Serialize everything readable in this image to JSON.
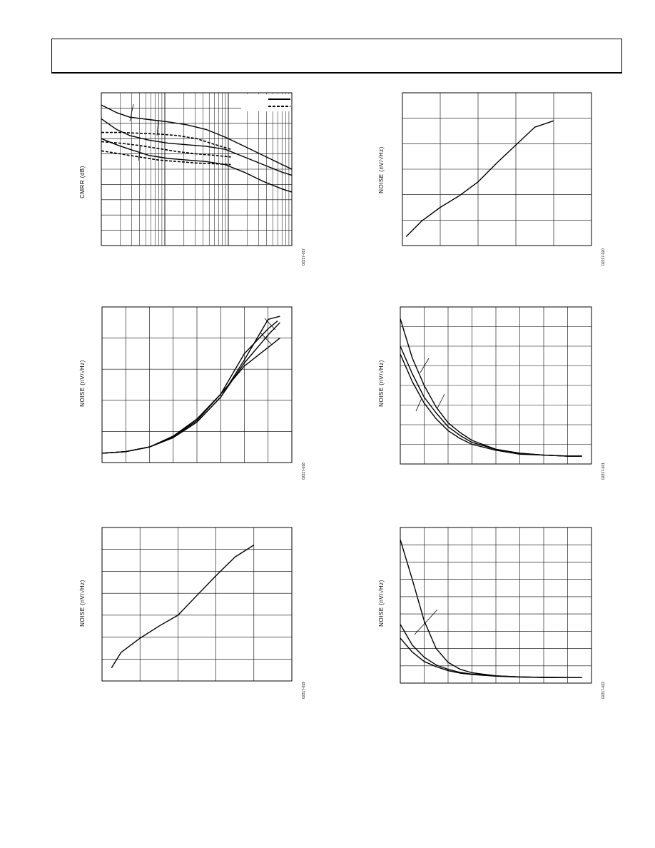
{
  "header": {},
  "figures": [
    {
      "id": "f017",
      "ylabel": "CMRR (dB)",
      "fig_number": "02217-017",
      "legend_styles": [
        "solid",
        "dashed"
      ],
      "log_x": true
    },
    {
      "id": "f020",
      "ylabel": "NOISE (nV/√Hz)",
      "fig_number": "02217-020"
    },
    {
      "id": "f018",
      "ylabel": "NOISE (nV/√Hz)",
      "fig_number": "02217-018"
    },
    {
      "id": "f021",
      "ylabel": "NOISE (nV/√Hz)",
      "fig_number": "02217-021"
    },
    {
      "id": "f019",
      "ylabel": "NOISE (nV/√Hz)",
      "fig_number": "02217-019"
    },
    {
      "id": "f022",
      "ylabel": "NOISE (nV/√Hz)",
      "fig_number": "02217-022"
    }
  ],
  "chart_data": [
    {
      "id": "f017",
      "type": "line",
      "x_scale": "log",
      "xlim": [
        0,
        1
      ],
      "ylim": [
        0,
        10
      ],
      "series": [
        {
          "style": "solid",
          "x": [
            0,
            0.08,
            0.15,
            0.25,
            0.35,
            0.45,
            0.55,
            0.65,
            0.75,
            0.85,
            0.95,
            1.0
          ],
          "y": [
            9.2,
            8.7,
            8.4,
            8.25,
            8.1,
            7.9,
            7.6,
            7.1,
            6.5,
            5.9,
            5.3,
            5.0
          ]
        },
        {
          "style": "solid",
          "x": [
            0,
            0.08,
            0.15,
            0.25,
            0.35,
            0.45,
            0.55,
            0.65,
            0.75,
            0.85,
            0.95,
            1.0
          ],
          "y": [
            8.3,
            7.6,
            7.2,
            6.9,
            6.7,
            6.6,
            6.5,
            6.3,
            5.8,
            5.3,
            4.8,
            4.6
          ]
        },
        {
          "style": "solid",
          "x": [
            0,
            0.08,
            0.15,
            0.25,
            0.35,
            0.45,
            0.55,
            0.65,
            0.75,
            0.85,
            0.95,
            1.0
          ],
          "y": [
            7.0,
            6.6,
            6.3,
            5.9,
            5.7,
            5.6,
            5.5,
            5.3,
            4.8,
            4.2,
            3.7,
            3.5
          ]
        },
        {
          "style": "dashed",
          "x": [
            0,
            0.1,
            0.2,
            0.3,
            0.4,
            0.5,
            0.6,
            0.68
          ],
          "y": [
            7.4,
            7.4,
            7.35,
            7.3,
            7.2,
            7.0,
            6.6,
            6.3
          ]
        },
        {
          "style": "dashed",
          "x": [
            0,
            0.1,
            0.2,
            0.3,
            0.4,
            0.5,
            0.6,
            0.68
          ],
          "y": [
            6.8,
            6.7,
            6.55,
            6.35,
            6.15,
            6.0,
            5.9,
            5.8
          ]
        },
        {
          "style": "dashed",
          "x": [
            0,
            0.1,
            0.2,
            0.3,
            0.4,
            0.5,
            0.6,
            0.68
          ],
          "y": [
            6.2,
            6.0,
            5.8,
            5.6,
            5.5,
            5.4,
            5.35,
            5.3
          ]
        }
      ]
    },
    {
      "id": "f020",
      "type": "line",
      "xlim": [
        0,
        5
      ],
      "ylim": [
        0,
        6
      ],
      "series": [
        {
          "x": [
            0.1,
            0.5,
            1.0,
            1.5,
            2.0,
            2.5,
            3.0,
            3.5,
            4.0
          ],
          "y": [
            0.35,
            0.95,
            1.5,
            1.95,
            2.5,
            3.25,
            3.95,
            4.65,
            4.9
          ]
        }
      ]
    },
    {
      "id": "f018",
      "type": "line",
      "xlim": [
        0,
        8
      ],
      "ylim": [
        0,
        5
      ],
      "series": [
        {
          "x": [
            0,
            1,
            2,
            3,
            4,
            5,
            6,
            7,
            7.5
          ],
          "y": [
            0.3,
            0.35,
            0.5,
            0.8,
            1.3,
            2.1,
            3.3,
            4.6,
            4.7
          ]
        },
        {
          "x": [
            0,
            1,
            2,
            3,
            4,
            5,
            6,
            7,
            7.4
          ],
          "y": [
            0.3,
            0.35,
            0.5,
            0.82,
            1.35,
            2.2,
            3.5,
            4.3,
            4.55
          ]
        },
        {
          "x": [
            0,
            1,
            2,
            3,
            4,
            5,
            6,
            7,
            7.5
          ],
          "y": [
            0.3,
            0.35,
            0.5,
            0.8,
            1.3,
            2.1,
            3.2,
            4.1,
            4.5
          ]
        },
        {
          "x": [
            0,
            1,
            2,
            3,
            4,
            5,
            6,
            7,
            7.5
          ],
          "y": [
            0.3,
            0.35,
            0.5,
            0.85,
            1.4,
            2.2,
            3.1,
            3.7,
            4.0
          ]
        }
      ]
    },
    {
      "id": "f021",
      "type": "line",
      "xlim": [
        0,
        8
      ],
      "ylim": [
        0,
        8
      ],
      "series": [
        {
          "x": [
            0,
            0.5,
            1,
            1.5,
            2,
            2.5,
            3,
            4,
            5,
            6,
            7,
            7.6
          ],
          "y": [
            7.4,
            5.4,
            4.0,
            2.9,
            2.1,
            1.6,
            1.2,
            0.75,
            0.55,
            0.45,
            0.4,
            0.4
          ]
        },
        {
          "x": [
            0,
            0.5,
            1,
            1.5,
            2,
            2.5,
            3,
            4,
            5,
            6,
            7,
            7.6
          ],
          "y": [
            6.0,
            4.6,
            3.4,
            2.6,
            1.9,
            1.45,
            1.1,
            0.75,
            0.55,
            0.45,
            0.4,
            0.4
          ]
        },
        {
          "x": [
            0,
            0.5,
            1,
            1.5,
            2,
            2.5,
            3,
            4,
            5,
            6,
            7,
            7.6
          ],
          "y": [
            5.6,
            4.2,
            3.1,
            2.3,
            1.7,
            1.3,
            1.0,
            0.7,
            0.5,
            0.45,
            0.4,
            0.4
          ]
        }
      ]
    },
    {
      "id": "f019",
      "type": "line",
      "xlim": [
        0,
        5
      ],
      "ylim": [
        0,
        7
      ],
      "series": [
        {
          "x": [
            0.25,
            0.5,
            1.0,
            1.5,
            2.0,
            2.5,
            3.0,
            3.5,
            4.0
          ],
          "y": [
            0.6,
            1.3,
            1.95,
            2.5,
            3.0,
            3.9,
            4.8,
            5.65,
            6.2
          ]
        }
      ]
    },
    {
      "id": "f022",
      "type": "line",
      "xlim": [
        0,
        8
      ],
      "ylim": [
        0,
        9
      ],
      "series": [
        {
          "x": [
            0,
            0.5,
            1,
            1.5,
            2,
            2.5,
            3,
            4,
            5,
            6,
            7,
            7.6
          ],
          "y": [
            8.3,
            6.0,
            3.6,
            2.0,
            1.2,
            0.8,
            0.6,
            0.42,
            0.36,
            0.33,
            0.32,
            0.32
          ]
        },
        {
          "x": [
            0,
            0.5,
            1,
            1.5,
            2,
            2.5,
            3,
            4,
            5,
            6,
            7,
            7.6
          ],
          "y": [
            3.4,
            2.2,
            1.5,
            1.05,
            0.8,
            0.62,
            0.52,
            0.42,
            0.36,
            0.33,
            0.32,
            0.32
          ]
        },
        {
          "x": [
            0,
            0.5,
            1,
            1.5,
            2,
            2.5,
            3,
            4,
            5,
            6,
            7,
            7.6
          ],
          "y": [
            2.6,
            1.8,
            1.25,
            0.95,
            0.72,
            0.58,
            0.5,
            0.4,
            0.35,
            0.33,
            0.32,
            0.32
          ]
        }
      ]
    }
  ]
}
